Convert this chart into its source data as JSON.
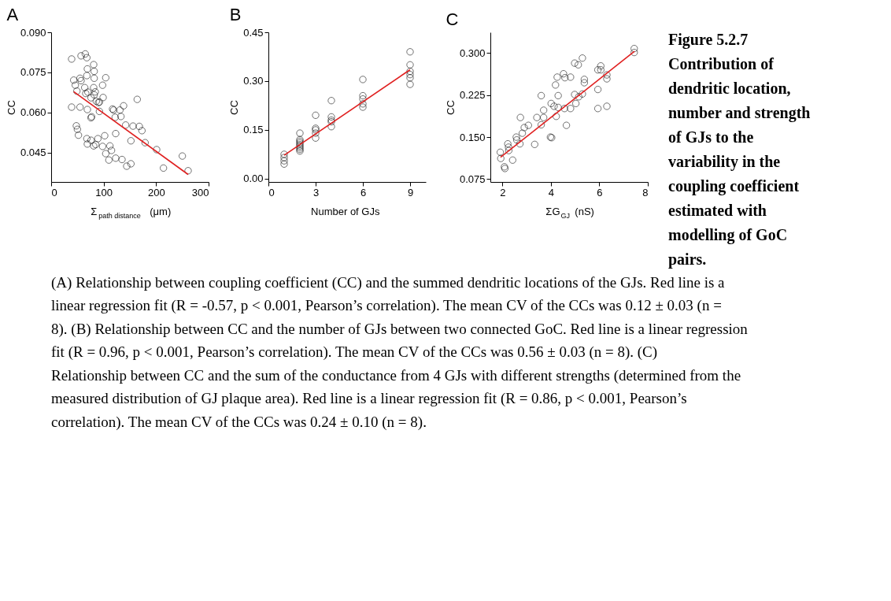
{
  "chart_data": [
    {
      "type": "scatter",
      "title": "A",
      "xlabel": "Σ$_{path distance}$ (μm)",
      "ylabel": "CC",
      "grid": false,
      "xlim": [
        0,
        300
      ],
      "xticks": [
        0,
        100,
        200,
        300
      ],
      "ylim": [
        0.034,
        0.09
      ],
      "yticks": [
        {
          "value": 0.045,
          "label": "0.045"
        },
        {
          "value": 0.06,
          "label": "0.060"
        },
        {
          "value": 0.075,
          "label": "0.075"
        },
        {
          "value": 0.09,
          "label": "0.090"
        }
      ],
      "series": [
        {
          "marker": "circle",
          "color": "#000000",
          "x": [
            39,
            57,
            65,
            68,
            81,
            82,
            69,
            82,
            104,
            43,
            55,
            68,
            57,
            46,
            49,
            64,
            81,
            98,
            66,
            70,
            84,
            99,
            82,
            86,
            90,
            92,
            76,
            39,
            55,
            69,
            77,
            76,
            92,
            117,
            119,
            131,
            138,
            122,
            133,
            164,
            142,
            156,
            168,
            173,
            152,
            179,
            123,
            48,
            50,
            52,
            68,
            76,
            89,
            69,
            81,
            85,
            102,
            98,
            112,
            115,
            104,
            110,
            123,
            135,
            144,
            152,
            201,
            214,
            250,
            261
          ],
          "values": [
            0.08,
            0.0812,
            0.0819,
            0.0805,
            0.0779,
            0.0754,
            0.0763,
            0.0728,
            0.073,
            0.0721,
            0.0728,
            0.0738,
            0.0719,
            0.0702,
            0.068,
            0.0693,
            0.0693,
            0.0702,
            0.0671,
            0.0676,
            0.0677,
            0.0656,
            0.0666,
            0.0642,
            0.0637,
            0.0639,
            0.0655,
            0.062,
            0.062,
            0.0611,
            0.0584,
            0.058,
            0.0604,
            0.0613,
            0.0609,
            0.0609,
            0.0625,
            0.0582,
            0.0585,
            0.0649,
            0.0553,
            0.0549,
            0.0548,
            0.0532,
            0.0494,
            0.0487,
            0.0521,
            0.055,
            0.0537,
            0.0515,
            0.0502,
            0.0496,
            0.0502,
            0.0482,
            0.0475,
            0.048,
            0.0513,
            0.0473,
            0.0475,
            0.0458,
            0.0446,
            0.0422,
            0.0429,
            0.0424,
            0.0399,
            0.0408,
            0.0461,
            0.0392,
            0.0437,
            0.0382
          ]
        },
        {
          "type": "line",
          "color": "#e02020",
          "x": [
            43,
            261
          ],
          "values": [
            0.0678,
            0.0368
          ]
        }
      ]
    },
    {
      "type": "scatter",
      "title": "B",
      "xlabel": "Number of GJs",
      "ylabel": "CC",
      "grid": false,
      "xlim": [
        0,
        10
      ],
      "xticks": [
        0,
        3,
        6,
        9
      ],
      "ylim": [
        -0.01,
        0.45
      ],
      "yticks": [
        {
          "value": 0,
          "label": "0.00"
        },
        {
          "value": 0.15,
          "label": "0.15"
        },
        {
          "value": 0.3,
          "label": "0.30"
        },
        {
          "value": 0.45,
          "label": "0.45"
        }
      ],
      "series": [
        {
          "marker": "circle",
          "color": "#000000",
          "x": [
            1,
            1,
            1,
            1,
            2,
            2,
            2,
            2,
            2,
            2,
            2,
            2,
            2,
            3,
            3,
            3,
            3,
            3,
            4,
            4,
            4,
            4,
            4,
            6,
            6,
            6,
            6,
            6,
            9,
            9,
            9,
            9,
            9,
            9
          ],
          "values": [
            0.075,
            0.065,
            0.055,
            0.045,
            0.14,
            0.12,
            0.115,
            0.11,
            0.105,
            0.1,
            0.095,
            0.09,
            0.085,
            0.195,
            0.155,
            0.15,
            0.14,
            0.125,
            0.24,
            0.19,
            0.18,
            0.175,
            0.16,
            0.305,
            0.255,
            0.245,
            0.23,
            0.22,
            0.39,
            0.35,
            0.33,
            0.32,
            0.31,
            0.29
          ]
        },
        {
          "type": "line",
          "color": "#e02020",
          "x": [
            1,
            9
          ],
          "values": [
            0.072,
            0.335
          ]
        }
      ]
    },
    {
      "type": "scatter",
      "title": "C",
      "xlabel": "ΣG$_{GJ}$ (nS)",
      "ylabel": "CC",
      "grid": false,
      "xlim": [
        1.5,
        8
      ],
      "xticks": [
        2,
        4,
        6,
        8
      ],
      "ylim": [
        0.07,
        0.337
      ],
      "yticks": [
        {
          "value": 0.075,
          "label": "0.075"
        },
        {
          "value": 0.15,
          "label": "0.150"
        },
        {
          "value": 0.225,
          "label": "0.225"
        },
        {
          "value": 0.3,
          "label": "0.300"
        }
      ],
      "series": [
        {
          "marker": "circle",
          "color": "#000000",
          "x": [
            1.91,
            1.93,
            2.08,
            2.1,
            2.22,
            2.25,
            2.26,
            2.42,
            2.57,
            2.59,
            2.74,
            2.72,
            2.82,
            2.9,
            3.07,
            3.33,
            3.42,
            3.6,
            3.6,
            3.7,
            3.7,
            3.98,
            4.03,
            4.01,
            4.13,
            4.19,
            4.26,
            4.3,
            4.3,
            4.22,
            4.52,
            4.58,
            4.56,
            4.64,
            4.81,
            4.81,
            4.98,
            5.03,
            5.15,
            4.98,
            5.13,
            5.3,
            5.38,
            5.38,
            5.3,
            5.94,
            5.94,
            5.94,
            6.06,
            6.06,
            6.31,
            6.31,
            6.31,
            7.44,
            7.44
          ],
          "values": [
            0.123,
            0.112,
            0.097,
            0.094,
            0.138,
            0.132,
            0.126,
            0.109,
            0.15,
            0.145,
            0.185,
            0.138,
            0.157,
            0.167,
            0.171,
            0.137,
            0.185,
            0.224,
            0.172,
            0.198,
            0.185,
            0.15,
            0.149,
            0.21,
            0.205,
            0.243,
            0.257,
            0.224,
            0.203,
            0.187,
            0.263,
            0.256,
            0.201,
            0.171,
            0.257,
            0.201,
            0.226,
            0.21,
            0.222,
            0.282,
            0.279,
            0.291,
            0.253,
            0.247,
            0.227,
            0.27,
            0.235,
            0.201,
            0.277,
            0.27,
            0.261,
            0.254,
            0.205,
            0.308,
            0.301
          ]
        },
        {
          "type": "line",
          "color": "#e02020",
          "x": [
            1.92,
            7.45
          ],
          "values": [
            0.114,
            0.303
          ]
        }
      ],
      "annotations": [
        "Figure 5.2.7 Contribution of dendritic location, number and strength of GJs to the variability in the coupling coefficient estimated with modelling of GoC pairs.",
        "(A) Relationship between coupling coefficient (CC) and the summed dendritic locations of the GJs. Red line is a linear regression fit (R = -0.57, p < 0.001, Pearson’s correlation). The mean CV of the CCs was 0.12 ± 0.03 (n = 8). (B) Relationship between CC and the number of GJs between two connected GoC. Red line is a linear regression fit (R = 0.96, p < 0.001, Pearson’s correlation). The mean CV of the CCs was 0.56 ± 0.03 (n = 8). (C) Relationship between CC and the sum of the conductance from 4 GJs with different strengths (determined from the measured distribution of GJ plaque area). Red line is a linear regression fit (R = 0.86, p < 0.001, Pearson’s correlation). The mean CV of the CCs was 0.24 ± 0.10 (n = 8)."
      ]
    }
  ]
}
